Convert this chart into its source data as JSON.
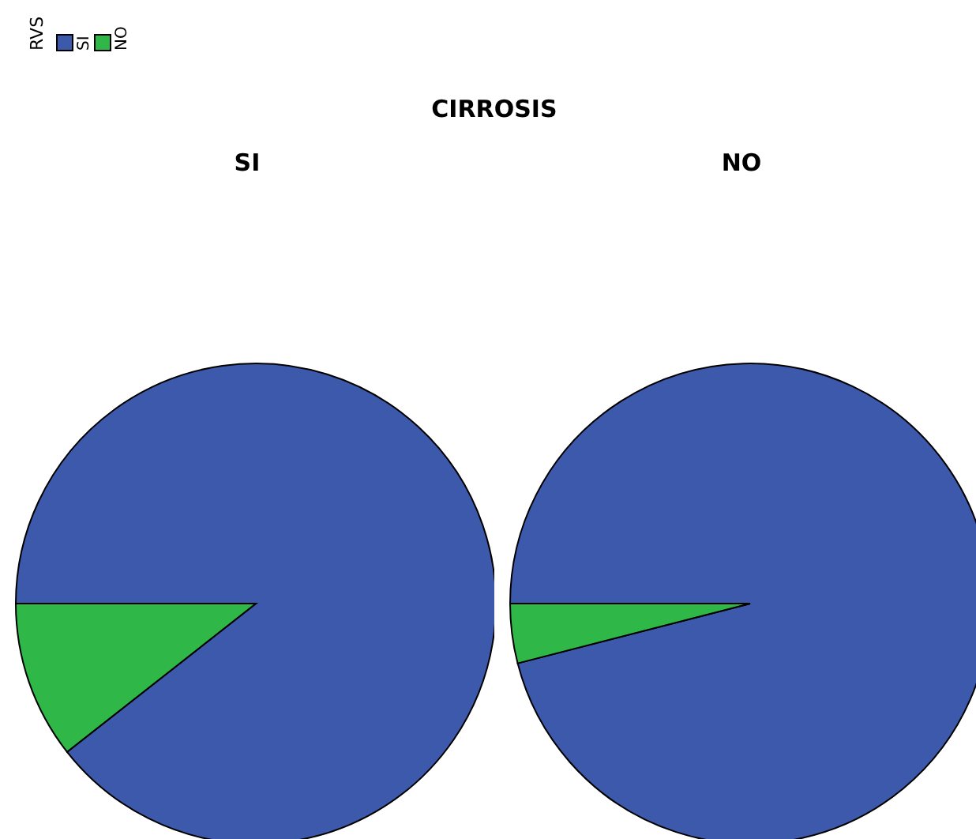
{
  "chart_data": [
    {
      "type": "pie",
      "title": "CIRROSIS",
      "subtitle": "SI",
      "legend_title": "RVS",
      "legend": "top left",
      "categories": [
        "SI",
        "NO"
      ],
      "values": [
        89.4,
        10.6
      ],
      "colors": [
        "#3d59ab",
        "#2fb847"
      ]
    },
    {
      "type": "pie",
      "subtitle": "NO",
      "categories": [
        null,
        null
      ],
      "values": [
        96,
        4
      ],
      "colors": [
        "#3d59ab",
        "#2fb847"
      ]
    }
  ]
}
